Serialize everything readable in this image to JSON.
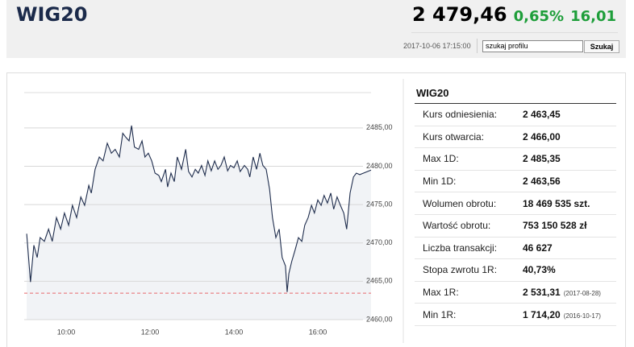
{
  "header": {
    "title": "WIG20",
    "price": "2 479,46",
    "change_pct": "0,65%",
    "change": "16,01",
    "datetime": "2017-10-06 17:15:00"
  },
  "search": {
    "placeholder": "szukaj profilu",
    "button": "Szukaj"
  },
  "table": {
    "title": "WIG20",
    "rows": [
      {
        "label": "Kurs odniesienia:",
        "value": "2 463,45"
      },
      {
        "label": "Kurs otwarcia:",
        "value": "2 466,00"
      },
      {
        "label": "Max 1D:",
        "value": "2 485,35"
      },
      {
        "label": "Min 1D:",
        "value": "2 463,56"
      },
      {
        "label": "Wolumen obrotu:",
        "value": "18 469 535 szt."
      },
      {
        "label": "Wartość obrotu:",
        "value": "753 150 528 zł"
      },
      {
        "label": "Liczba transakcji:",
        "value": "46 627"
      },
      {
        "label": "Stopa zwrotu 1R:",
        "value": "40,73%"
      },
      {
        "label": "Max 1R:",
        "value": "2 531,31",
        "date": "(2017-08-28)"
      },
      {
        "label": "Min 1R:",
        "value": "1 714,20",
        "date": "(2016-10-17)"
      }
    ]
  },
  "chart_data": {
    "type": "line",
    "color": "#1f2d4d",
    "area_color": "#f1f3f6",
    "reference_value": 2463.45,
    "reference_color": "#e8676b",
    "x": [
      9.06,
      9.15,
      9.23,
      9.31,
      9.38,
      9.48,
      9.58,
      9.67,
      9.77,
      9.87,
      9.96,
      10.06,
      10.15,
      10.25,
      10.35,
      10.44,
      10.54,
      10.6,
      10.69,
      10.79,
      10.88,
      10.98,
      11.08,
      11.17,
      11.27,
      11.35,
      11.42,
      11.5,
      11.56,
      11.63,
      11.73,
      11.81,
      11.88,
      11.96,
      12.04,
      12.12,
      12.21,
      12.27,
      12.37,
      12.42,
      12.5,
      12.58,
      12.65,
      12.75,
      12.85,
      12.92,
      13.0,
      13.08,
      13.15,
      13.23,
      13.31,
      13.38,
      13.46,
      13.54,
      13.62,
      13.69,
      13.77,
      13.85,
      13.92,
      14.0,
      14.08,
      14.15,
      14.25,
      14.33,
      14.38,
      14.46,
      14.54,
      14.62,
      14.69,
      14.77,
      14.85,
      14.92,
      15.0,
      15.08,
      15.15,
      15.23,
      15.27,
      15.31,
      15.38,
      15.46,
      15.54,
      15.62,
      15.69,
      15.77,
      15.85,
      15.92,
      16.0,
      16.08,
      16.15,
      16.23,
      16.31,
      16.38,
      16.46,
      16.54,
      16.62,
      16.69,
      16.77,
      16.85,
      16.92,
      17.0,
      17.27
    ],
    "values": [
      2471.2,
      2464.9,
      2469.7,
      2468.1,
      2470.7,
      2470.2,
      2471.8,
      2470.2,
      2473.3,
      2471.8,
      2473.9,
      2472.3,
      2474.9,
      2473.3,
      2476.0,
      2474.9,
      2477.5,
      2476.5,
      2479.6,
      2481.2,
      2480.7,
      2483.0,
      2481.7,
      2482.2,
      2481.2,
      2484.3,
      2483.8,
      2483.3,
      2485.3,
      2482.5,
      2482.2,
      2483.3,
      2481.2,
      2481.7,
      2480.7,
      2479.1,
      2478.8,
      2478.0,
      2479.6,
      2477.3,
      2479.1,
      2478.0,
      2481.2,
      2479.6,
      2482.2,
      2479.3,
      2478.6,
      2479.6,
      2479.1,
      2480.1,
      2478.8,
      2480.7,
      2479.4,
      2480.7,
      2479.6,
      2480.1,
      2481.2,
      2479.4,
      2480.1,
      2479.8,
      2480.7,
      2479.3,
      2480.1,
      2479.6,
      2478.6,
      2481.2,
      2479.6,
      2481.7,
      2480.1,
      2479.6,
      2477.0,
      2473.3,
      2470.7,
      2471.8,
      2468.1,
      2467.0,
      2463.6,
      2466.0,
      2467.6,
      2469.1,
      2470.7,
      2470.2,
      2472.3,
      2473.3,
      2474.9,
      2473.9,
      2475.6,
      2474.9,
      2476.2,
      2475.2,
      2476.5,
      2474.4,
      2476.0,
      2474.9,
      2473.9,
      2471.8,
      2476.5,
      2478.6,
      2479.1,
      2478.9,
      2479.5
    ],
    "xlim": [
      9,
      17.27
    ],
    "ylim": [
      2460,
      2489.6
    ],
    "xticks": [
      {
        "value": 10,
        "label": "10:00"
      },
      {
        "value": 12,
        "label": "12:00"
      },
      {
        "value": 14,
        "label": "14:00"
      },
      {
        "value": 16,
        "label": "16:00"
      }
    ],
    "yticks": [
      {
        "value": 2460,
        "label": "2460,00"
      },
      {
        "value": 2465,
        "label": "2465,00"
      },
      {
        "value": 2470,
        "label": "2470,00"
      },
      {
        "value": 2475,
        "label": "2475,00"
      },
      {
        "value": 2480,
        "label": "2480,00"
      },
      {
        "value": 2485,
        "label": "2485,00"
      }
    ],
    "grid": true
  }
}
